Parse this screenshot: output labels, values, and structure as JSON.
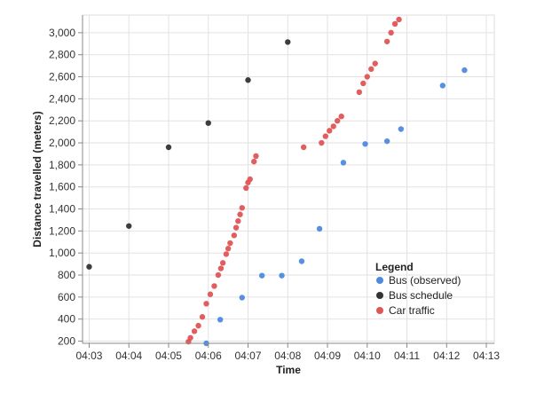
{
  "chart_data": {
    "type": "scatter",
    "xlabel": "Time",
    "ylabel": "Distance travelled (meters)",
    "xlim": [
      "04:02:50",
      "04:13:12"
    ],
    "ylim": [
      180,
      3160
    ],
    "x_ticks": [
      "04:03",
      "04:04",
      "04:05",
      "04:06",
      "04:07",
      "04:08",
      "04:09",
      "04:10",
      "04:11",
      "04:12",
      "04:13"
    ],
    "y_ticks": [
      "200",
      "400",
      "600",
      "800",
      "1,000",
      "1,200",
      "1,400",
      "1,600",
      "1,800",
      "2,000",
      "2,200",
      "2,400",
      "2,600",
      "2,800",
      "3,000"
    ],
    "grid": true,
    "legend": {
      "title": "Legend",
      "placement": "bottom-right"
    },
    "series": [
      {
        "name": "Bus (observed)",
        "color": "#4e8ae0",
        "points": [
          [
            "04:05:57",
            180
          ],
          [
            "04:06:18",
            395
          ],
          [
            "04:06:51",
            595
          ],
          [
            "04:07:21",
            795
          ],
          [
            "04:07:51",
            795
          ],
          [
            "04:08:21",
            925
          ],
          [
            "04:08:48",
            1220
          ],
          [
            "04:09:24",
            1820
          ],
          [
            "04:09:57",
            1990
          ],
          [
            "04:10:30",
            2015
          ],
          [
            "04:10:51",
            2125
          ],
          [
            "04:11:54",
            2520
          ],
          [
            "04:12:27",
            2660
          ]
        ]
      },
      {
        "name": "Bus schedule",
        "color": "#333333",
        "points": [
          [
            "04:03:00",
            875
          ],
          [
            "04:04:00",
            1245
          ],
          [
            "04:05:00",
            1960
          ],
          [
            "04:06:00",
            2180
          ],
          [
            "04:07:00",
            2570
          ],
          [
            "04:08:00",
            2915
          ]
        ]
      },
      {
        "name": "Car traffic",
        "color": "#e05555",
        "points": [
          [
            "04:05:30",
            195
          ],
          [
            "04:05:33",
            230
          ],
          [
            "04:05:39",
            290
          ],
          [
            "04:05:45",
            340
          ],
          [
            "04:05:51",
            420
          ],
          [
            "04:05:57",
            540
          ],
          [
            "04:06:03",
            625
          ],
          [
            "04:06:09",
            700
          ],
          [
            "04:06:15",
            800
          ],
          [
            "04:06:19",
            860
          ],
          [
            "04:06:22",
            910
          ],
          [
            "04:06:27",
            990
          ],
          [
            "04:06:30",
            1040
          ],
          [
            "04:06:33",
            1090
          ],
          [
            "04:06:39",
            1160
          ],
          [
            "04:06:42",
            1230
          ],
          [
            "04:06:45",
            1290
          ],
          [
            "04:06:48",
            1350
          ],
          [
            "04:06:51",
            1410
          ],
          [
            "04:06:57",
            1590
          ],
          [
            "04:07:00",
            1640
          ],
          [
            "04:07:03",
            1670
          ],
          [
            "04:07:09",
            1830
          ],
          [
            "04:07:12",
            1880
          ],
          [
            "04:08:24",
            1960
          ],
          [
            "04:08:51",
            2000
          ],
          [
            "04:08:57",
            2060
          ],
          [
            "04:09:03",
            2110
          ],
          [
            "04:09:09",
            2150
          ],
          [
            "04:09:15",
            2200
          ],
          [
            "04:09:21",
            2240
          ],
          [
            "04:09:48",
            2460
          ],
          [
            "04:09:54",
            2540
          ],
          [
            "04:10:00",
            2600
          ],
          [
            "04:10:06",
            2670
          ],
          [
            "04:10:12",
            2720
          ],
          [
            "04:10:30",
            2920
          ],
          [
            "04:10:36",
            3000
          ],
          [
            "04:10:42",
            3080
          ],
          [
            "04:10:48",
            3120
          ]
        ]
      }
    ]
  }
}
